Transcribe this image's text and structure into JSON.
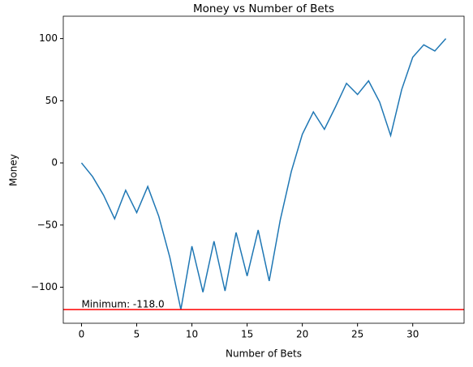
{
  "chart_data": {
    "type": "line",
    "title": "Money vs Number of Bets",
    "xlabel": "Number of Bets",
    "ylabel": "Money",
    "x": [
      0,
      1,
      2,
      3,
      4,
      5,
      6,
      7,
      8,
      9,
      10,
      11,
      12,
      13,
      14,
      15,
      16,
      17,
      18,
      19,
      20,
      21,
      22,
      23,
      24,
      25,
      26,
      27,
      28,
      29,
      30,
      31,
      32,
      33
    ],
    "series": [
      {
        "name": "Money",
        "color": "#1f77b4",
        "values": [
          0,
          -11,
          -26,
          -45,
          -22,
          -40,
          -19,
          -43,
          -76,
          -118,
          -67,
          -104,
          -63,
          -103,
          -56,
          -91,
          -54,
          -95,
          -46,
          -7,
          23,
          41,
          27,
          45,
          64,
          55,
          66,
          49,
          22,
          59,
          85,
          95,
          90,
          100
        ]
      }
    ],
    "xlim": [
      -1.65,
      34.65
    ],
    "xticks": [
      0,
      5,
      10,
      15,
      20,
      25,
      30
    ],
    "ylim": [
      -129,
      118
    ],
    "yticks": [
      {
        "value": -100,
        "label": "−100"
      },
      {
        "value": -50,
        "label": "−50"
      },
      0,
      50,
      100
    ],
    "reference_line": {
      "value": -118,
      "label": "Minimum: -118.0",
      "color": "red"
    },
    "legend": false,
    "grid": false
  }
}
